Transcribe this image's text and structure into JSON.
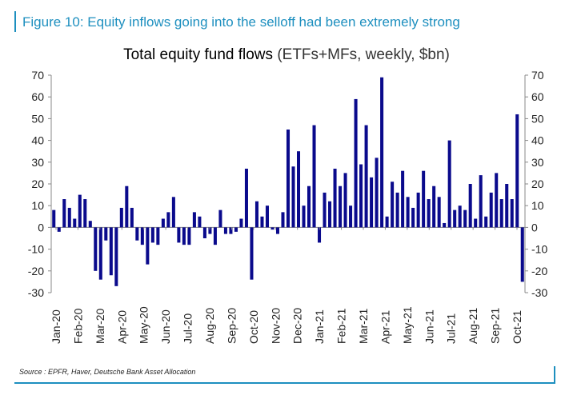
{
  "figure_title": "Figure 10: Equity inflows going into the selloff had been extremely strong",
  "source": "Source : EPFR, Haver, Deutsche Bank Asset Allocation",
  "colors": {
    "bar": "#0a0a8c",
    "accent": "#1d8fbf",
    "axis": "#888888"
  },
  "chart_data": {
    "type": "bar",
    "title": "Total equity fund flows",
    "subtitle": "(ETFs+MFs, weekly, $bn)",
    "xlabel": "",
    "ylabel": "",
    "ylim": [
      -30,
      70
    ],
    "yticks": [
      70,
      60,
      50,
      40,
      30,
      20,
      10,
      0,
      -10,
      -20,
      -30
    ],
    "tick_labels": [
      "Jan-20",
      "Feb-20",
      "Mar-20",
      "Apr-20",
      "May-20",
      "Jun-20",
      "Jul-20",
      "Aug-20",
      "Sep-20",
      "Oct-20",
      "Nov-20",
      "Dec-20",
      "Jan-21",
      "Feb-21",
      "Mar-21",
      "Apr-21",
      "May-21",
      "Jun-21",
      "Jul-21",
      "Aug-21",
      "Sep-21",
      "Oct-21"
    ],
    "series": [
      {
        "name": "Total equity fund flows",
        "values": [
          8,
          -2,
          13,
          9,
          4,
          15,
          13,
          3,
          -20,
          -24,
          -6,
          -22,
          -27,
          9,
          19,
          9,
          -6,
          -8,
          -17,
          -7,
          -8,
          4,
          7,
          14,
          -7,
          -8,
          -8,
          7,
          5,
          -5,
          -3,
          -8,
          8,
          -3,
          -3,
          -2,
          4,
          27,
          -24,
          12,
          5,
          10,
          -1,
          -3,
          7,
          45,
          28,
          35,
          10,
          19,
          47,
          -7,
          16,
          12,
          27,
          19,
          25,
          10,
          59,
          29,
          47,
          23,
          32,
          69,
          5,
          21,
          16,
          26,
          14,
          9,
          16,
          26,
          13,
          19,
          14,
          2,
          40,
          8,
          10,
          8,
          20,
          4,
          24,
          5,
          16,
          25,
          13,
          20,
          13,
          52,
          -25
        ]
      }
    ]
  }
}
